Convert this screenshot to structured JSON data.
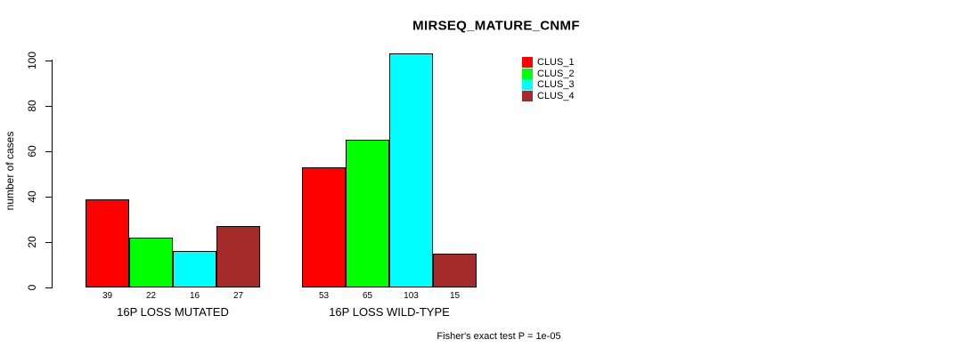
{
  "title": "MIRSEQ_MATURE_CNMF",
  "footer": "Fisher's exact test P = 1e-05",
  "y_axis": {
    "label": "number of cases",
    "ticks": [
      0,
      20,
      40,
      60,
      80,
      100
    ]
  },
  "legend": [
    {
      "label": "CLUS_1",
      "color": "#FF0000"
    },
    {
      "label": "CLUS_2",
      "color": "#00FF00"
    },
    {
      "label": "CLUS_3",
      "color": "#00FFFF"
    },
    {
      "label": "CLUS_4",
      "color": "#A52A2A"
    }
  ],
  "chart_data": {
    "type": "bar",
    "title": "MIRSEQ_MATURE_CNMF",
    "xlabel": "",
    "ylabel": "number of cases",
    "ylim": [
      0,
      100
    ],
    "grid": false,
    "legend_position": "top-right",
    "categories": [
      "16P LOSS MUTATED",
      "16P LOSS WILD-TYPE"
    ],
    "series": [
      {
        "name": "CLUS_1",
        "color": "#FF0000",
        "values": [
          39,
          53
        ]
      },
      {
        "name": "CLUS_2",
        "color": "#00FF00",
        "values": [
          22,
          65
        ]
      },
      {
        "name": "CLUS_3",
        "color": "#00FFFF",
        "values": [
          16,
          103
        ]
      },
      {
        "name": "CLUS_4",
        "color": "#A52A2A",
        "values": [
          27,
          15
        ]
      }
    ],
    "bar_value_labels": {
      "16P LOSS MUTATED": [
        39,
        22,
        16,
        27
      ],
      "16P LOSS WILD-TYPE": [
        53,
        65,
        103,
        15
      ]
    },
    "annotation": "Fisher's exact test P = 1e-05"
  }
}
